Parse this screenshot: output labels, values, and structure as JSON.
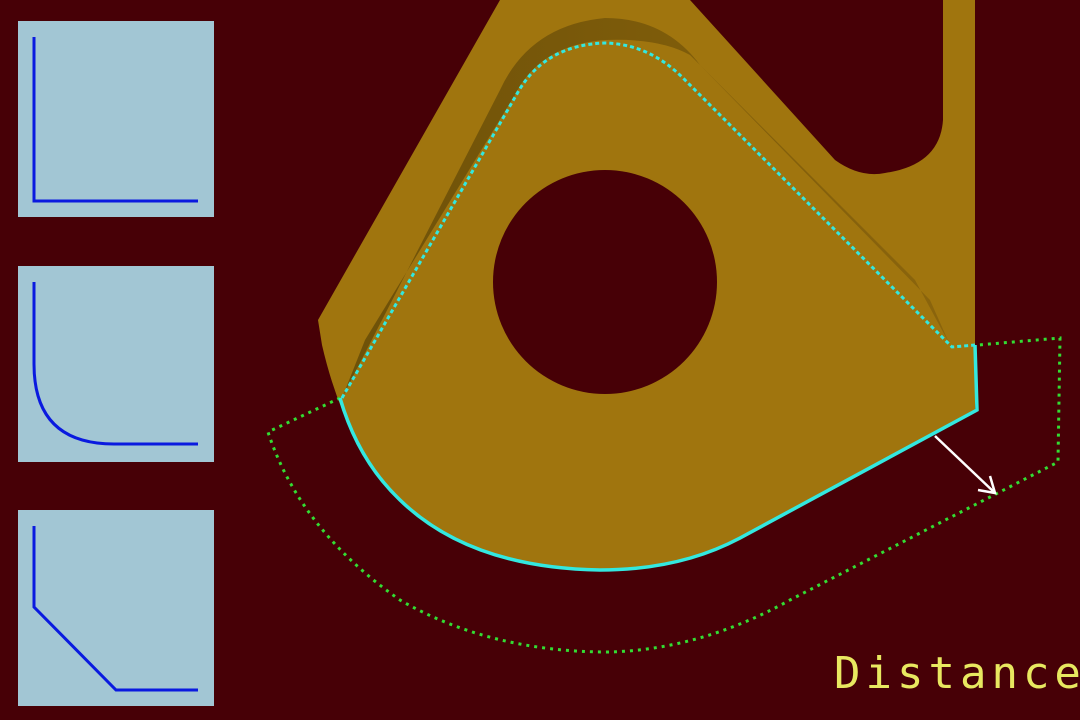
{
  "mode_label": "Distance",
  "colors": {
    "background": "#470006",
    "part_fill": "#a0750e",
    "part_shadow": "#6d5109",
    "selected_edge": "#33e8e0",
    "offset_preview": "#33dd33",
    "direction_arrow": "#ffffff",
    "panel_background": "#a2c6d4",
    "panel_stroke": "#0a1adf",
    "label_color": "#e8e860"
  },
  "corner_options": [
    {
      "name": "square-corner",
      "icon": "square-corner-icon"
    },
    {
      "name": "round-corner",
      "icon": "round-corner-icon"
    },
    {
      "name": "chamfer-corner",
      "icon": "chamfer-corner-icon"
    }
  ]
}
